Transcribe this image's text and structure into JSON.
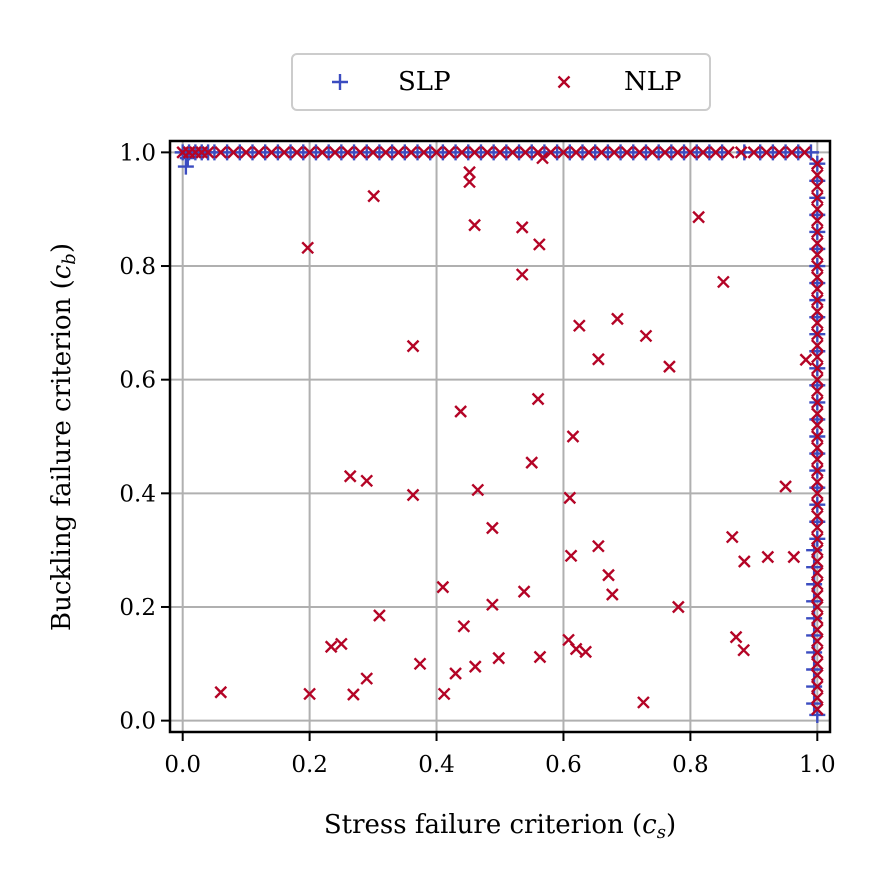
{
  "chart_data": {
    "type": "scatter",
    "xlabel": "Stress failure criterion (c_s)",
    "xlabel_parts": {
      "text": "Stress failure criterion (",
      "var": "c",
      "sub": "s",
      "close": ")"
    },
    "ylabel": "Buckling failure criterion (c_b)",
    "ylabel_parts": {
      "text": "Buckling failure criterion (",
      "var": "c",
      "sub": "b",
      "close": ")"
    },
    "xlim": [
      -0.02,
      1.02
    ],
    "ylim": [
      -0.02,
      1.02
    ],
    "xticks": [
      "0.0",
      "0.2",
      "0.4",
      "0.6",
      "0.8",
      "1.0"
    ],
    "yticks": [
      "0.0",
      "0.2",
      "0.4",
      "0.6",
      "0.8",
      "1.0"
    ],
    "grid": true,
    "legend_position": "top-center-outside",
    "series": [
      {
        "name": "SLP",
        "marker": "+",
        "color": "#3b4cc0",
        "points": [
          [
            0.0,
            1.0
          ],
          [
            0.005,
            0.975
          ],
          [
            0.008,
            0.99
          ],
          [
            0.01,
            1.0
          ],
          [
            0.02,
            1.0
          ],
          [
            0.03,
            1.0
          ],
          [
            0.04,
            1.0
          ],
          [
            0.05,
            1.0
          ],
          [
            0.07,
            1.0
          ],
          [
            0.09,
            1.0
          ],
          [
            0.11,
            1.0
          ],
          [
            0.13,
            1.0
          ],
          [
            0.15,
            1.0
          ],
          [
            0.17,
            1.0
          ],
          [
            0.19,
            1.0
          ],
          [
            0.21,
            1.0
          ],
          [
            0.23,
            1.0
          ],
          [
            0.25,
            1.0
          ],
          [
            0.27,
            1.0
          ],
          [
            0.29,
            1.0
          ],
          [
            0.31,
            1.0
          ],
          [
            0.33,
            1.0
          ],
          [
            0.35,
            1.0
          ],
          [
            0.37,
            1.0
          ],
          [
            0.39,
            1.0
          ],
          [
            0.41,
            1.0
          ],
          [
            0.43,
            1.0
          ],
          [
            0.45,
            1.0
          ],
          [
            0.47,
            1.0
          ],
          [
            0.49,
            1.0
          ],
          [
            0.51,
            1.0
          ],
          [
            0.53,
            1.0
          ],
          [
            0.55,
            1.0
          ],
          [
            0.57,
            1.0
          ],
          [
            0.59,
            1.0
          ],
          [
            0.61,
            1.0
          ],
          [
            0.63,
            1.0
          ],
          [
            0.65,
            1.0
          ],
          [
            0.67,
            1.0
          ],
          [
            0.69,
            1.0
          ],
          [
            0.71,
            1.0
          ],
          [
            0.73,
            1.0
          ],
          [
            0.75,
            1.0
          ],
          [
            0.77,
            1.0
          ],
          [
            0.79,
            1.0
          ],
          [
            0.81,
            1.0
          ],
          [
            0.83,
            1.0
          ],
          [
            0.85,
            1.0
          ],
          [
            0.885,
            1.0
          ],
          [
            0.91,
            1.0
          ],
          [
            0.93,
            1.0
          ],
          [
            0.95,
            1.0
          ],
          [
            0.97,
            1.0
          ],
          [
            0.99,
            1.0
          ],
          [
            1.0,
            0.98
          ],
          [
            1.0,
            0.95
          ],
          [
            1.0,
            0.92
          ],
          [
            1.0,
            0.89
          ],
          [
            1.0,
            0.86
          ],
          [
            1.0,
            0.83
          ],
          [
            1.0,
            0.8
          ],
          [
            1.0,
            0.77
          ],
          [
            1.0,
            0.74
          ],
          [
            1.0,
            0.71
          ],
          [
            1.0,
            0.68
          ],
          [
            1.0,
            0.65
          ],
          [
            1.0,
            0.62
          ],
          [
            1.0,
            0.59
          ],
          [
            1.0,
            0.56
          ],
          [
            1.0,
            0.53
          ],
          [
            1.0,
            0.5
          ],
          [
            1.0,
            0.47
          ],
          [
            1.0,
            0.44
          ],
          [
            1.0,
            0.41
          ],
          [
            1.0,
            0.38
          ],
          [
            1.0,
            0.35
          ],
          [
            1.0,
            0.32
          ],
          [
            0.995,
            0.3
          ],
          [
            0.995,
            0.27
          ],
          [
            0.995,
            0.24
          ],
          [
            0.995,
            0.21
          ],
          [
            0.995,
            0.18
          ],
          [
            0.995,
            0.15
          ],
          [
            0.995,
            0.12
          ],
          [
            0.995,
            0.09
          ],
          [
            0.995,
            0.06
          ],
          [
            0.995,
            0.03
          ],
          [
            1.0,
            0.01
          ]
        ]
      },
      {
        "name": "NLP",
        "marker": "x",
        "color": "#b40426",
        "points": [
          [
            0.0,
            1.0
          ],
          [
            0.01,
            1.0
          ],
          [
            0.02,
            1.0
          ],
          [
            0.03,
            1.0
          ],
          [
            0.04,
            1.0
          ],
          [
            0.06,
            1.0
          ],
          [
            0.08,
            1.0
          ],
          [
            0.1,
            1.0
          ],
          [
            0.12,
            1.0
          ],
          [
            0.14,
            1.0
          ],
          [
            0.16,
            1.0
          ],
          [
            0.18,
            1.0
          ],
          [
            0.2,
            1.0
          ],
          [
            0.22,
            1.0
          ],
          [
            0.24,
            1.0
          ],
          [
            0.26,
            1.0
          ],
          [
            0.28,
            1.0
          ],
          [
            0.3,
            1.0
          ],
          [
            0.32,
            1.0
          ],
          [
            0.34,
            1.0
          ],
          [
            0.36,
            1.0
          ],
          [
            0.38,
            1.0
          ],
          [
            0.4,
            1.0
          ],
          [
            0.42,
            1.0
          ],
          [
            0.44,
            1.0
          ],
          [
            0.46,
            1.0
          ],
          [
            0.48,
            1.0
          ],
          [
            0.5,
            1.0
          ],
          [
            0.52,
            1.0
          ],
          [
            0.54,
            1.0
          ],
          [
            0.56,
            1.0
          ],
          [
            0.58,
            1.0
          ],
          [
            0.6,
            1.0
          ],
          [
            0.62,
            1.0
          ],
          [
            0.64,
            1.0
          ],
          [
            0.66,
            1.0
          ],
          [
            0.68,
            1.0
          ],
          [
            0.7,
            1.0
          ],
          [
            0.72,
            1.0
          ],
          [
            0.74,
            1.0
          ],
          [
            0.76,
            1.0
          ],
          [
            0.78,
            1.0
          ],
          [
            0.8,
            1.0
          ],
          [
            0.82,
            1.0
          ],
          [
            0.84,
            1.0
          ],
          [
            0.86,
            1.0
          ],
          [
            0.88,
            1.0
          ],
          [
            0.9,
            1.0
          ],
          [
            0.92,
            1.0
          ],
          [
            0.94,
            1.0
          ],
          [
            0.96,
            1.0
          ],
          [
            0.98,
            1.0
          ],
          [
            1.0,
            0.98
          ],
          [
            1.0,
            0.96
          ],
          [
            1.0,
            0.94
          ],
          [
            1.0,
            0.92
          ],
          [
            1.0,
            0.9
          ],
          [
            1.0,
            0.88
          ],
          [
            1.0,
            0.86
          ],
          [
            1.0,
            0.84
          ],
          [
            1.0,
            0.82
          ],
          [
            1.0,
            0.8
          ],
          [
            1.0,
            0.78
          ],
          [
            1.0,
            0.76
          ],
          [
            1.0,
            0.74
          ],
          [
            1.0,
            0.72
          ],
          [
            1.0,
            0.7
          ],
          [
            1.0,
            0.68
          ],
          [
            1.0,
            0.66
          ],
          [
            1.0,
            0.64
          ],
          [
            1.0,
            0.62
          ],
          [
            1.0,
            0.6
          ],
          [
            1.0,
            0.58
          ],
          [
            1.0,
            0.56
          ],
          [
            1.0,
            0.54
          ],
          [
            1.0,
            0.52
          ],
          [
            1.0,
            0.5
          ],
          [
            1.0,
            0.48
          ],
          [
            1.0,
            0.46
          ],
          [
            1.0,
            0.44
          ],
          [
            1.0,
            0.42
          ],
          [
            1.0,
            0.4
          ],
          [
            1.0,
            0.38
          ],
          [
            1.0,
            0.36
          ],
          [
            1.0,
            0.34
          ],
          [
            1.0,
            0.32
          ],
          [
            1.0,
            0.3
          ],
          [
            1.0,
            0.28
          ],
          [
            1.0,
            0.26
          ],
          [
            1.0,
            0.24
          ],
          [
            1.0,
            0.22
          ],
          [
            1.0,
            0.2
          ],
          [
            1.0,
            0.18
          ],
          [
            1.0,
            0.16
          ],
          [
            1.0,
            0.14
          ],
          [
            1.0,
            0.12
          ],
          [
            1.0,
            0.1
          ],
          [
            1.0,
            0.08
          ],
          [
            1.0,
            0.06
          ],
          [
            1.0,
            0.04
          ],
          [
            1.0,
            0.02
          ],
          [
            0.452,
            0.965
          ],
          [
            0.452,
            0.948
          ],
          [
            0.567,
            0.99
          ],
          [
            0.301,
            0.923
          ],
          [
            0.46,
            0.872
          ],
          [
            0.535,
            0.868
          ],
          [
            0.562,
            0.838
          ],
          [
            0.197,
            0.832
          ],
          [
            0.535,
            0.785
          ],
          [
            0.813,
            0.886
          ],
          [
            0.852,
            0.772
          ],
          [
            0.982,
            0.635
          ],
          [
            0.363,
            0.659
          ],
          [
            0.625,
            0.695
          ],
          [
            0.685,
            0.707
          ],
          [
            0.73,
            0.677
          ],
          [
            0.655,
            0.636
          ],
          [
            0.767,
            0.623
          ],
          [
            0.438,
            0.544
          ],
          [
            0.56,
            0.566
          ],
          [
            0.615,
            0.5
          ],
          [
            0.55,
            0.454
          ],
          [
            0.95,
            0.412
          ],
          [
            0.264,
            0.43
          ],
          [
            0.29,
            0.422
          ],
          [
            0.363,
            0.397
          ],
          [
            0.465,
            0.406
          ],
          [
            0.61,
            0.392
          ],
          [
            0.488,
            0.339
          ],
          [
            0.655,
            0.307
          ],
          [
            0.612,
            0.29
          ],
          [
            0.866,
            0.323
          ],
          [
            0.922,
            0.288
          ],
          [
            0.963,
            0.288
          ],
          [
            0.885,
            0.28
          ],
          [
            0.671,
            0.256
          ],
          [
            0.677,
            0.222
          ],
          [
            0.41,
            0.235
          ],
          [
            0.538,
            0.227
          ],
          [
            0.488,
            0.204
          ],
          [
            0.781,
            0.2
          ],
          [
            0.31,
            0.185
          ],
          [
            0.443,
            0.166
          ],
          [
            0.234,
            0.13
          ],
          [
            0.25,
            0.135
          ],
          [
            0.608,
            0.142
          ],
          [
            0.62,
            0.126
          ],
          [
            0.635,
            0.121
          ],
          [
            0.872,
            0.147
          ],
          [
            0.884,
            0.124
          ],
          [
            0.374,
            0.1
          ],
          [
            0.43,
            0.083
          ],
          [
            0.461,
            0.095
          ],
          [
            0.498,
            0.11
          ],
          [
            0.563,
            0.112
          ],
          [
            0.06,
            0.05
          ],
          [
            0.2,
            0.047
          ],
          [
            0.269,
            0.046
          ],
          [
            0.29,
            0.074
          ],
          [
            0.412,
            0.047
          ],
          [
            0.726,
            0.032
          ]
        ]
      }
    ]
  }
}
